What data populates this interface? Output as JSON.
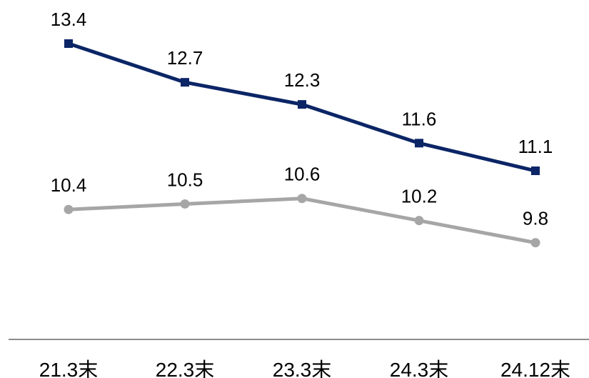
{
  "chart_data": {
    "type": "line",
    "categories": [
      "21.3末",
      "22.3末",
      "23.3末",
      "24.3末",
      "24.12末"
    ],
    "series": [
      {
        "values": [
          13.4,
          12.7,
          12.3,
          11.6,
          11.1
        ],
        "labels": [
          "13.4",
          "12.7",
          "12.3",
          "11.6",
          "11.1"
        ],
        "color": "#0b2566",
        "marker": "square"
      },
      {
        "values": [
          10.4,
          10.5,
          10.6,
          10.2,
          9.8
        ],
        "labels": [
          "10.4",
          "10.5",
          "10.6",
          "10.2",
          "9.8"
        ],
        "color": "#a6a6a6",
        "marker": "circle"
      }
    ],
    "xlabel": "",
    "ylabel": "",
    "ylim": [
      6.2,
      13.4
    ],
    "grid": false,
    "legend": "none"
  }
}
